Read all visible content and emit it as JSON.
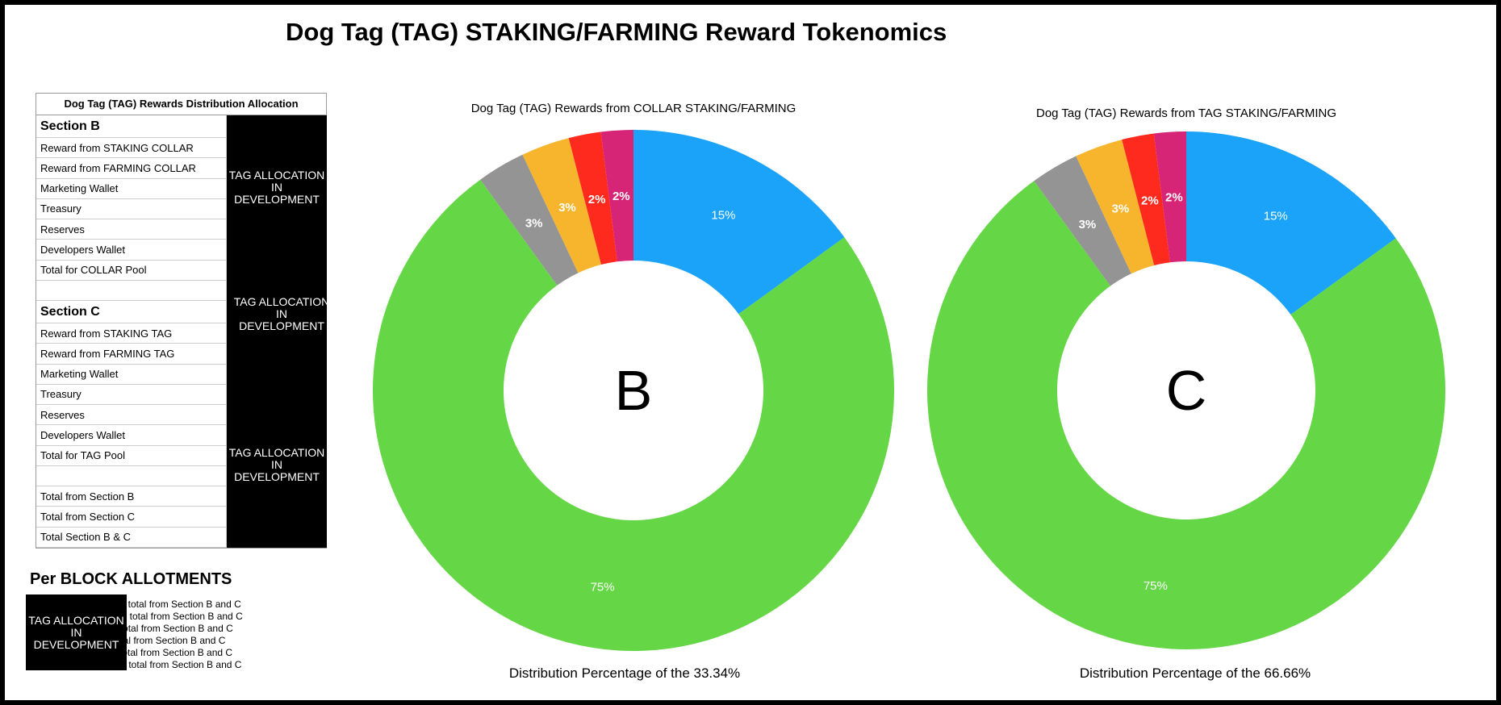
{
  "title": "Dog Tag (TAG) STAKING/FARMING Reward Tokenomics",
  "allocation_table": {
    "header": "Dog Tag (TAG) Rewards Distribution Allocation",
    "rows": [
      {
        "label": "Section B",
        "kind": "section"
      },
      {
        "label": "Reward from STAKING COLLAR",
        "kind": "row"
      },
      {
        "label": "Reward from FARMING COLLAR",
        "kind": "row"
      },
      {
        "label": "Marketing Wallet",
        "kind": "row"
      },
      {
        "label": "Treasury",
        "kind": "row"
      },
      {
        "label": "Reserves",
        "kind": "row"
      },
      {
        "label": "Developers Wallet",
        "kind": "row"
      },
      {
        "label": "Total for COLLAR Pool",
        "kind": "row"
      },
      {
        "label": "",
        "kind": "blank"
      },
      {
        "label": "Section C",
        "kind": "section"
      },
      {
        "label": "Reward from STAKING TAG",
        "kind": "row"
      },
      {
        "label": "Reward from FARMING TAG",
        "kind": "row"
      },
      {
        "label": "Marketing Wallet",
        "kind": "row"
      },
      {
        "label": "Treasury",
        "kind": "row"
      },
      {
        "label": "Reserves",
        "kind": "row"
      },
      {
        "label": "Developers Wallet",
        "kind": "row"
      },
      {
        "label": "Total for TAG Pool",
        "kind": "row"
      },
      {
        "label": "",
        "kind": "blank"
      },
      {
        "label": "Total from Section B",
        "kind": "row"
      },
      {
        "label": "Total from Section C",
        "kind": "row"
      },
      {
        "label": "Total Section B & C",
        "kind": "row"
      }
    ],
    "dev_labels": [
      "TAG ALLOCATION\nIN\nDEVELOPMENT",
      "TAG ALLOCATION\nIN\nDEVELOPMENT",
      "TAG ALLOCATION\nIN\nDEVELOPMENT"
    ]
  },
  "per_block": {
    "title": "Per BLOCK ALLOTMENTS",
    "dev_label": "TAG ALLOCATION\nIN\nDEVELOPMENT",
    "items": [
      "KING total from Section B and C",
      "MING total from Section B and C",
      "ting total from Section B and C",
      "ry total from Section B and C",
      "ves total from Section B and C",
      "opers total from Section B and C"
    ]
  },
  "chart_data": [
    {
      "type": "pie",
      "title": "Dog Tag (TAG) Rewards from COLLAR STAKING/FARMING",
      "center_label": "B",
      "caption": "Distribution Percentage of the 33.34%",
      "slices": [
        {
          "value": 15,
          "label": "15%",
          "color": "#1aa3f8"
        },
        {
          "value": 75,
          "label": "75%",
          "color": "#65d646"
        },
        {
          "value": 3,
          "label": "3%",
          "color": "#949494"
        },
        {
          "value": 3,
          "label": "3%",
          "color": "#f7b52d"
        },
        {
          "value": 2,
          "label": "2%",
          "color": "#fd2a1d"
        },
        {
          "value": 2,
          "label": "2%",
          "color": "#d62577"
        }
      ]
    },
    {
      "type": "pie",
      "title": "Dog Tag (TAG) Rewards from TAG STAKING/FARMING",
      "center_label": "C",
      "caption": "Distribution Percentage of the 66.66%",
      "slices": [
        {
          "value": 15,
          "label": "15%",
          "color": "#1aa3f8"
        },
        {
          "value": 75,
          "label": "75%",
          "color": "#65d646"
        },
        {
          "value": 3,
          "label": "3%",
          "color": "#949494"
        },
        {
          "value": 3,
          "label": "3%",
          "color": "#f7b52d"
        },
        {
          "value": 2,
          "label": "2%",
          "color": "#fd2a1d"
        },
        {
          "value": 2,
          "label": "2%",
          "color": "#d62577"
        }
      ]
    }
  ]
}
